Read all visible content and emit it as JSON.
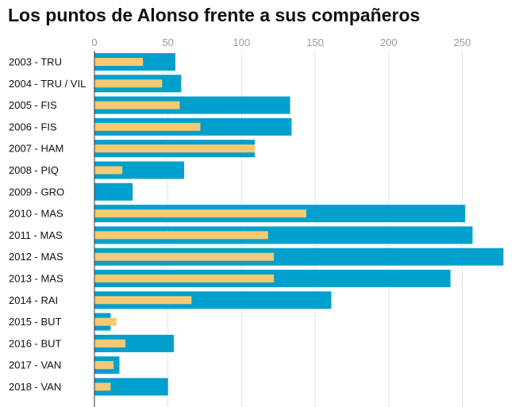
{
  "title": "Los puntos de Alonso frente a sus compañeros",
  "chart_data": {
    "type": "bar",
    "orientation": "horizontal",
    "title": "Los puntos de Alonso frente a sus compañeros",
    "xlabel": "",
    "ylabel": "",
    "xlim": [
      0,
      280
    ],
    "x_ticks": [
      0,
      50,
      100,
      150,
      200,
      250
    ],
    "grid": true,
    "legend": "none",
    "categories": [
      "2003 - TRU",
      "2004 - TRU / VIL",
      "2005 - FIS",
      "2006 - FIS",
      "2007 - HAM",
      "2008 - PIQ",
      "2009 - GRO",
      "2010 - MAS",
      "2011 - MAS",
      "2012 - MAS",
      "2013 - MAS",
      "2014 - RAI",
      "2015 - BUT",
      "2016 - BUT",
      "2017 - VAN",
      "2018 - VAN"
    ],
    "series": [
      {
        "color": "#00a0cc",
        "values": [
          55,
          59,
          133,
          134,
          109,
          61,
          26,
          252,
          257,
          278,
          242,
          161,
          11,
          54,
          17,
          50
        ]
      },
      {
        "color": "#f7c972",
        "values": [
          33,
          46,
          58,
          72,
          109,
          19,
          0,
          144,
          118,
          122,
          122,
          66,
          15,
          21,
          13,
          11
        ]
      }
    ]
  }
}
